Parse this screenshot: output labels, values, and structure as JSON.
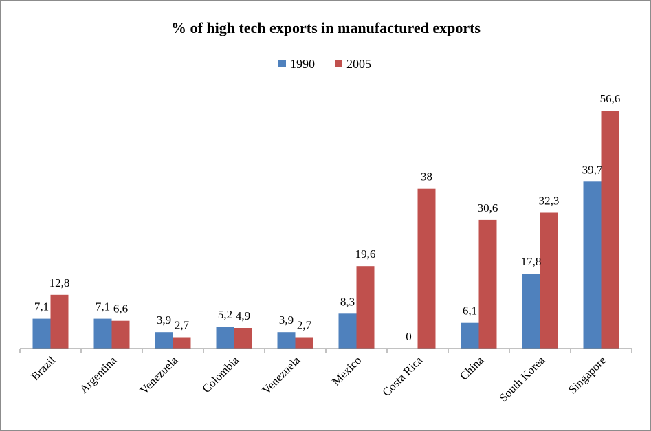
{
  "chart_data": {
    "type": "bar",
    "title": "% of high tech exports in manufactured exports",
    "xlabel": "",
    "ylabel": "",
    "ylim": [
      0,
      60
    ],
    "grid": false,
    "legend_position": "top-center",
    "categories": [
      "Brazil",
      "Argentina",
      "Venezuela",
      "Colombia",
      "Venezuela",
      "Mexico",
      "Costa Rica",
      "China",
      "South Korea",
      "Singapore"
    ],
    "series": [
      {
        "name": "1990",
        "color": "#4f81bd",
        "values": [
          7.1,
          7.1,
          3.9,
          5.2,
          3.9,
          8.3,
          0,
          6.1,
          17.8,
          39.7
        ],
        "labels": [
          "7,1",
          "7,1",
          "3,9",
          "5,2",
          "3,9",
          "8,3",
          "0",
          "6,1",
          "17,8",
          "39,7"
        ]
      },
      {
        "name": "2005",
        "color": "#c0504d",
        "values": [
          12.8,
          6.6,
          2.7,
          4.9,
          2.7,
          19.6,
          38,
          30.6,
          32.3,
          56.6
        ],
        "labels": [
          "12,8",
          "6,6",
          "2,7",
          "4,9",
          "2,7",
          "19,6",
          "38",
          "30,6",
          "32,3",
          "56,6"
        ]
      }
    ]
  }
}
